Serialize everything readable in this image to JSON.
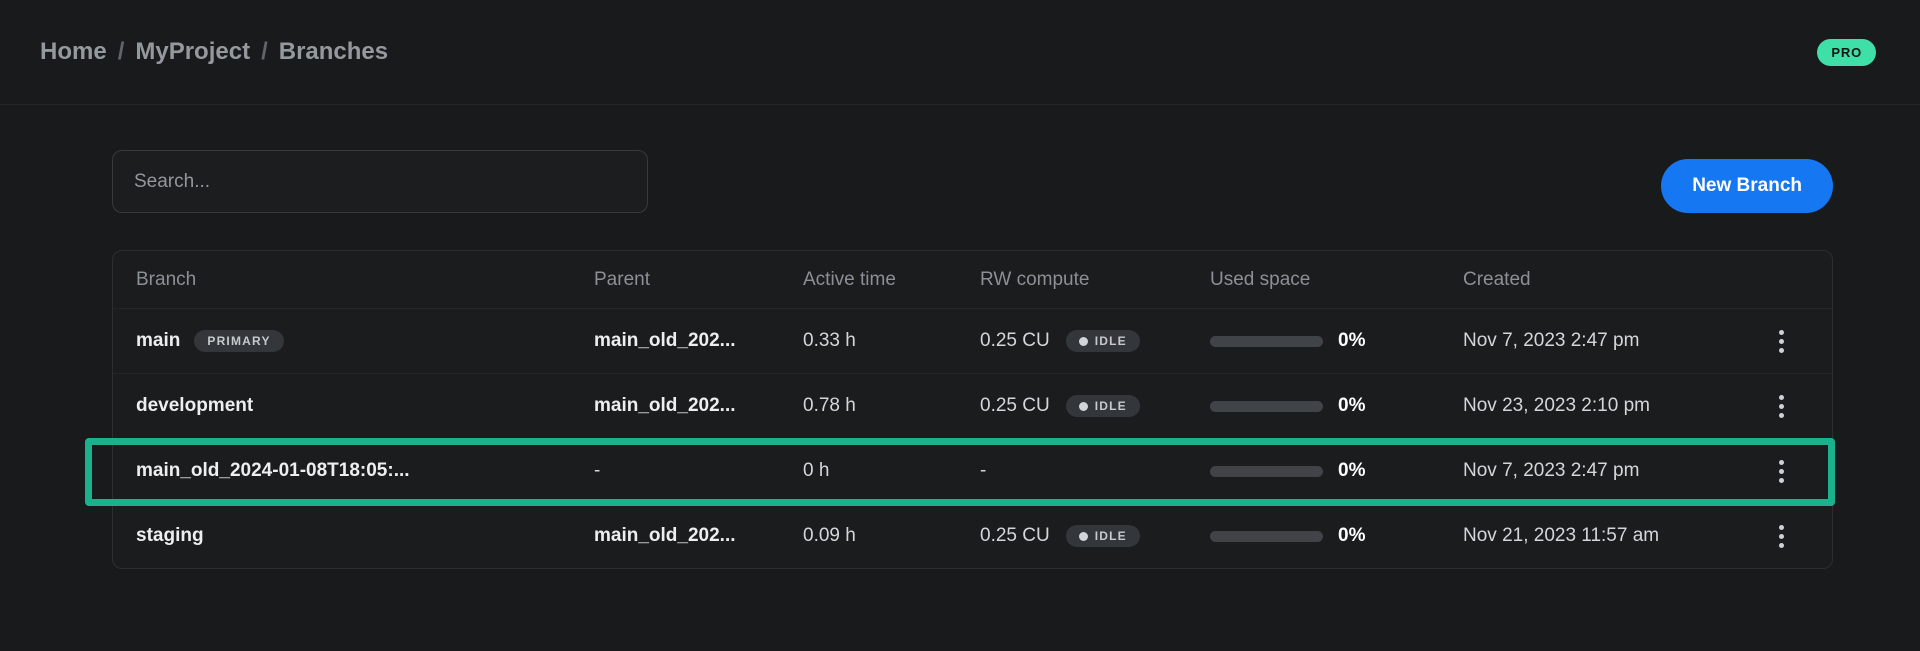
{
  "breadcrumb": {
    "separator": "/",
    "items": [
      "Home",
      "MyProject",
      "Branches"
    ]
  },
  "plan_badge": "PRO",
  "toolbar": {
    "search_placeholder": "Search...",
    "new_branch_label": "New Branch"
  },
  "table": {
    "columns": [
      "Branch",
      "Parent",
      "Active time",
      "RW compute",
      "Used space",
      "Created"
    ],
    "rows": [
      {
        "branch": "main",
        "badge": "PRIMARY",
        "parent": "main_old_202...",
        "active_time": "0.33 h",
        "rw_compute": "0.25 CU",
        "compute_state": "IDLE",
        "used_space_pct": "0%",
        "created": "Nov 7, 2023 2:47 pm"
      },
      {
        "branch": "development",
        "badge": "",
        "parent": "main_old_202...",
        "active_time": "0.78 h",
        "rw_compute": "0.25 CU",
        "compute_state": "IDLE",
        "used_space_pct": "0%",
        "created": "Nov 23, 2023 2:10 pm"
      },
      {
        "branch": "main_old_2024-01-08T18:05:...",
        "badge": "",
        "parent": "-",
        "active_time": "0 h",
        "rw_compute": "-",
        "compute_state": "",
        "used_space_pct": "0%",
        "created": "Nov 7, 2023 2:47 pm",
        "highlighted": true
      },
      {
        "branch": "staging",
        "badge": "",
        "parent": "main_old_202...",
        "active_time": "0.09 h",
        "rw_compute": "0.25 CU",
        "compute_state": "IDLE",
        "used_space_pct": "0%",
        "created": "Nov 21, 2023 11:57 am"
      }
    ]
  },
  "colors": {
    "accent_blue": "#1677f2",
    "pro_green": "#3fe0a8",
    "highlight_teal": "#1bb18c",
    "background": "#191a1b"
  }
}
